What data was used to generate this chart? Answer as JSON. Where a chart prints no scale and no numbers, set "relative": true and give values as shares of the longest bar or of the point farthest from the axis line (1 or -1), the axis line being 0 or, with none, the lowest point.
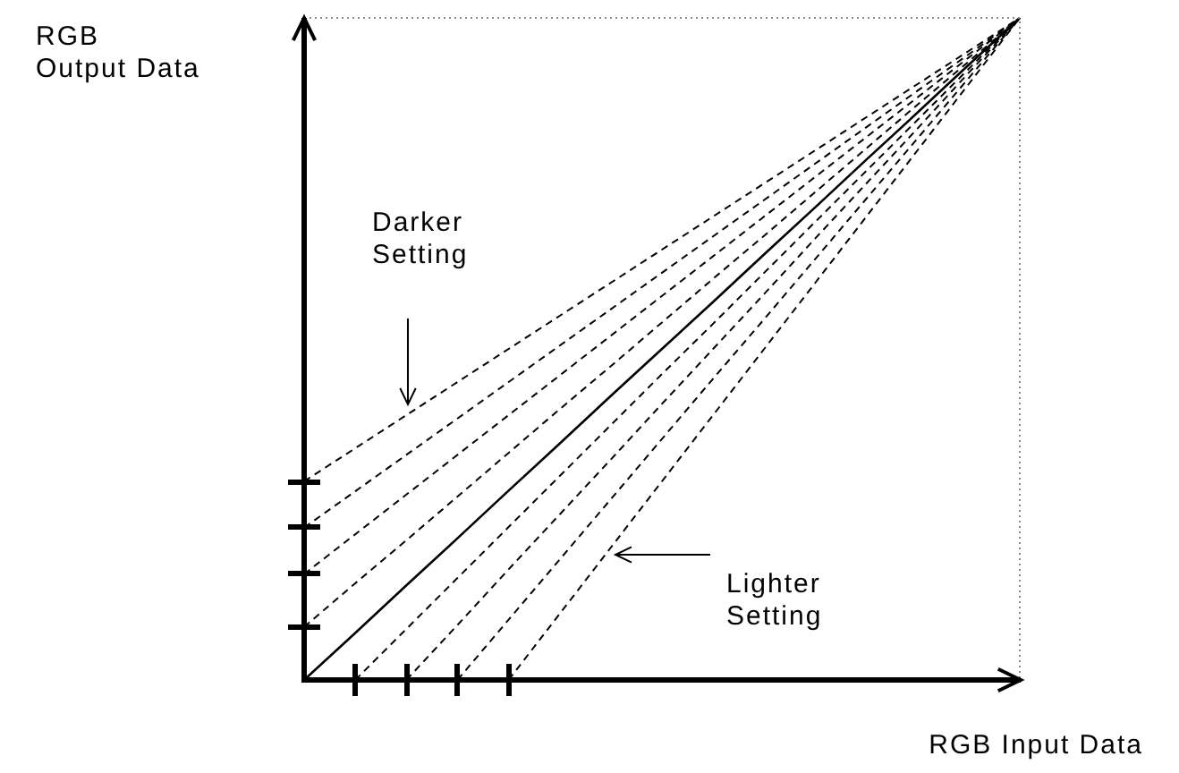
{
  "chart_data": {
    "type": "line",
    "relative": true,
    "xlabel": "RGB Input Data",
    "ylabel": "RGB Output Data",
    "legend": false,
    "marker": "none",
    "categories": [
      null,
      null,
      null,
      null,
      null,
      null,
      null,
      null,
      null,
      null,
      null,
      null,
      null,
      null,
      null
    ],
    "series": [
      {
        "color": "#000000",
        "line_style": "dashed",
        "values": [
          0.3,
          0.35,
          0.4,
          0.45,
          0.5,
          0.55,
          0.6,
          0.65,
          0.7,
          0.75,
          0.8,
          0.85,
          0.9,
          0.95,
          1
        ]
      },
      {
        "color": "#000000",
        "line_style": "dashed",
        "values": [
          0.23,
          0.285,
          0.34,
          0.395,
          0.45,
          0.505,
          0.56,
          0.615,
          0.67,
          0.725,
          0.78,
          0.835,
          0.89,
          0.945,
          1
        ]
      },
      {
        "color": "#000000",
        "line_style": "dashed",
        "values": [
          0.16,
          0.22,
          0.28,
          0.34,
          0.4,
          0.46,
          0.52,
          0.58,
          0.64,
          0.7,
          0.76,
          0.82,
          0.88,
          0.94,
          1
        ]
      },
      {
        "color": "#000000",
        "line_style": "dashed",
        "values": [
          0.08,
          0.146,
          0.211,
          0.277,
          0.343,
          0.409,
          0.474,
          0.54,
          0.606,
          0.671,
          0.737,
          0.803,
          0.869,
          0.934,
          1
        ]
      },
      {
        "color": "#000000",
        "line_style": "solid",
        "values": [
          0,
          0.071,
          0.143,
          0.214,
          0.286,
          0.357,
          0.429,
          0.5,
          0.571,
          0.643,
          0.714,
          0.786,
          0.857,
          0.929,
          1
        ]
      },
      {
        "color": "#000000",
        "line_style": "dashed",
        "values": [
          null,
          0,
          0.077,
          0.154,
          0.231,
          0.308,
          0.385,
          0.462,
          0.538,
          0.615,
          0.692,
          0.769,
          0.846,
          0.923,
          1
        ]
      },
      {
        "color": "#000000",
        "line_style": "dashed",
        "values": [
          null,
          null,
          0,
          0.083,
          0.167,
          0.25,
          0.333,
          0.417,
          0.5,
          0.583,
          0.667,
          0.75,
          0.833,
          0.917,
          1
        ]
      },
      {
        "color": "#000000",
        "line_style": "dashed",
        "values": [
          null,
          null,
          null,
          0,
          0.091,
          0.182,
          0.273,
          0.364,
          0.455,
          0.545,
          0.636,
          0.727,
          0.818,
          0.909,
          1
        ]
      },
      {
        "color": "#000000",
        "line_style": "dashed",
        "values": [
          null,
          null,
          null,
          null,
          0,
          0.1,
          0.2,
          0.3,
          0.4,
          0.5,
          0.6,
          0.7,
          0.8,
          0.9,
          1
        ]
      }
    ],
    "annotations": [
      "Darker Setting",
      "Lighter Setting"
    ]
  }
}
